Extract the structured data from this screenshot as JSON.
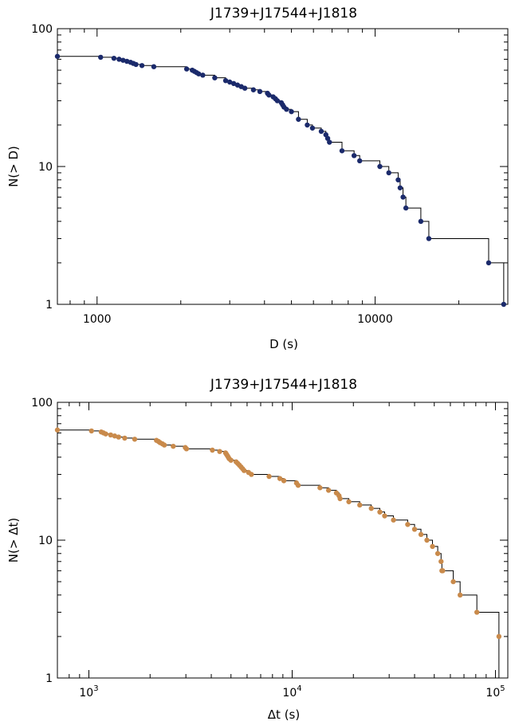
{
  "chart_data": [
    {
      "type": "scatter",
      "title": "J1739+J17544+J1818",
      "xlabel": "D (s)",
      "ylabel": "N(> D)",
      "xscale": "log",
      "yscale": "log",
      "xlim": [
        720,
        30000
      ],
      "ylim": [
        1,
        100
      ],
      "x_ticks": [
        {
          "value": 1000,
          "label": "1000"
        },
        {
          "value": 10000,
          "label": "10000"
        }
      ],
      "y_ticks": [
        {
          "value": 1,
          "label": "1"
        },
        {
          "value": 10,
          "label": "10"
        },
        {
          "value": 100,
          "label": "100"
        }
      ],
      "grid": false,
      "step_line": true,
      "marker_color": "#1b2a6b",
      "series": [
        {
          "x": [
            720,
            1030,
            1150,
            1200,
            1240,
            1280,
            1320,
            1350,
            1380,
            1450,
            1600,
            2100,
            2200,
            2240,
            2280,
            2320,
            2400,
            2650,
            2900,
            3000,
            3100,
            3200,
            3300,
            3400,
            3650,
            3850,
            4100,
            4150,
            4300,
            4380,
            4450,
            4600,
            4650,
            4700,
            4800,
            5000,
            5300,
            5700,
            5950,
            6400,
            6650,
            6750,
            6850,
            7600,
            8400,
            8800,
            10400,
            11200,
            12100,
            12300,
            12600,
            12900,
            14600,
            15600,
            25600,
            29000
          ],
          "y": [
            63,
            62,
            61,
            60,
            59,
            58,
            57,
            56,
            55,
            54,
            53,
            51,
            50,
            49,
            48,
            47,
            46,
            44,
            42,
            41,
            40,
            39,
            38,
            37,
            36,
            35,
            34,
            33,
            32,
            31,
            30,
            29,
            28,
            27,
            26,
            25,
            22,
            20,
            19,
            18,
            17,
            16,
            15,
            13,
            12,
            11,
            10,
            9,
            8,
            7,
            6,
            5,
            4,
            3,
            2,
            1
          ]
        }
      ]
    },
    {
      "type": "scatter",
      "title": "J1739+J17544+J1818",
      "xlabel": "Δt (s)",
      "ylabel": "N(> Δt)",
      "xscale": "log",
      "yscale": "log",
      "xlim": [
        700,
        115000
      ],
      "ylim": [
        1,
        100
      ],
      "x_ticks": [
        {
          "value": 1000,
          "base": "10",
          "exp": "3"
        },
        {
          "value": 10000,
          "base": "10",
          "exp": "4"
        },
        {
          "value": 100000,
          "base": "10",
          "exp": "5"
        }
      ],
      "y_ticks": [
        {
          "value": 1,
          "label": "1"
        },
        {
          "value": 10,
          "label": "10"
        },
        {
          "value": 100,
          "label": "100"
        }
      ],
      "grid": false,
      "step_line": true,
      "marker_color": "#c98a4b",
      "series": [
        {
          "x": [
            700,
            1030,
            1150,
            1180,
            1210,
            1280,
            1340,
            1400,
            1500,
            1680,
            2150,
            2200,
            2240,
            2300,
            2350,
            2600,
            2980,
            3020,
            4050,
            4400,
            4700,
            4750,
            4800,
            4850,
            4900,
            5000,
            5300,
            5400,
            5500,
            5600,
            5700,
            5800,
            6100,
            6300,
            7700,
            8700,
            9100,
            10500,
            10700,
            13700,
            15100,
            16500,
            17000,
            17200,
            19000,
            21500,
            24500,
            27000,
            28500,
            31500,
            37000,
            40000,
            43000,
            46000,
            49000,
            52000,
            54000,
            54500,
            55000,
            62000,
            67000,
            81000,
            104000
          ],
          "y": [
            63,
            62,
            61,
            60,
            59,
            58,
            57,
            56,
            55,
            54,
            53,
            52,
            51,
            50,
            49,
            48,
            47,
            46,
            45,
            44,
            43,
            42,
            41,
            40,
            39,
            38,
            37,
            36,
            35,
            34,
            33,
            32,
            31,
            30,
            29,
            28,
            27,
            26,
            25,
            24,
            23,
            22,
            21,
            20,
            19,
            18,
            17,
            16,
            15,
            14,
            13,
            12,
            11,
            10,
            9,
            8,
            7,
            6,
            6,
            5,
            4,
            3,
            2
          ]
        }
      ]
    }
  ]
}
